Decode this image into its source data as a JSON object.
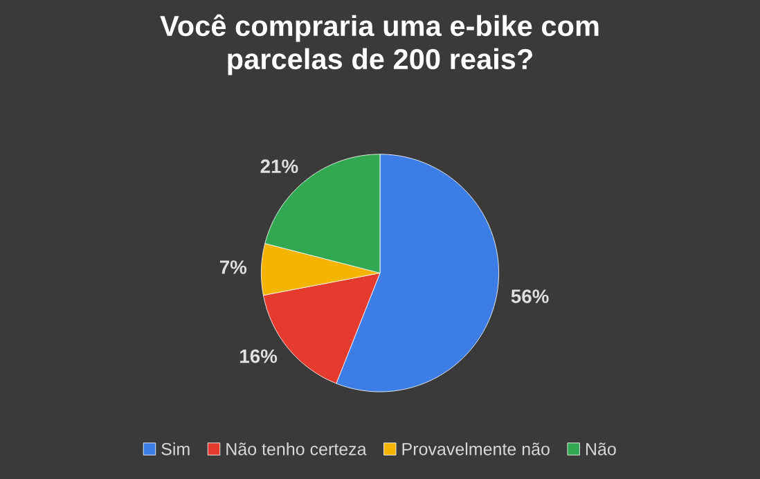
{
  "chart_data": {
    "type": "pie",
    "title": "Você compraria uma e-bike com\nparcelas de 200 reais?",
    "categories": [
      "Sim",
      "Não tenho certeza",
      "Provavelmente não",
      "Não"
    ],
    "values": [
      56,
      16,
      7,
      21
    ],
    "colors": [
      "#3d7ee6",
      "#e53a2e",
      "#f5b400",
      "#32a852"
    ],
    "value_labels": [
      "56%",
      "16%",
      "7%",
      "21%"
    ],
    "legend": "bottom"
  }
}
